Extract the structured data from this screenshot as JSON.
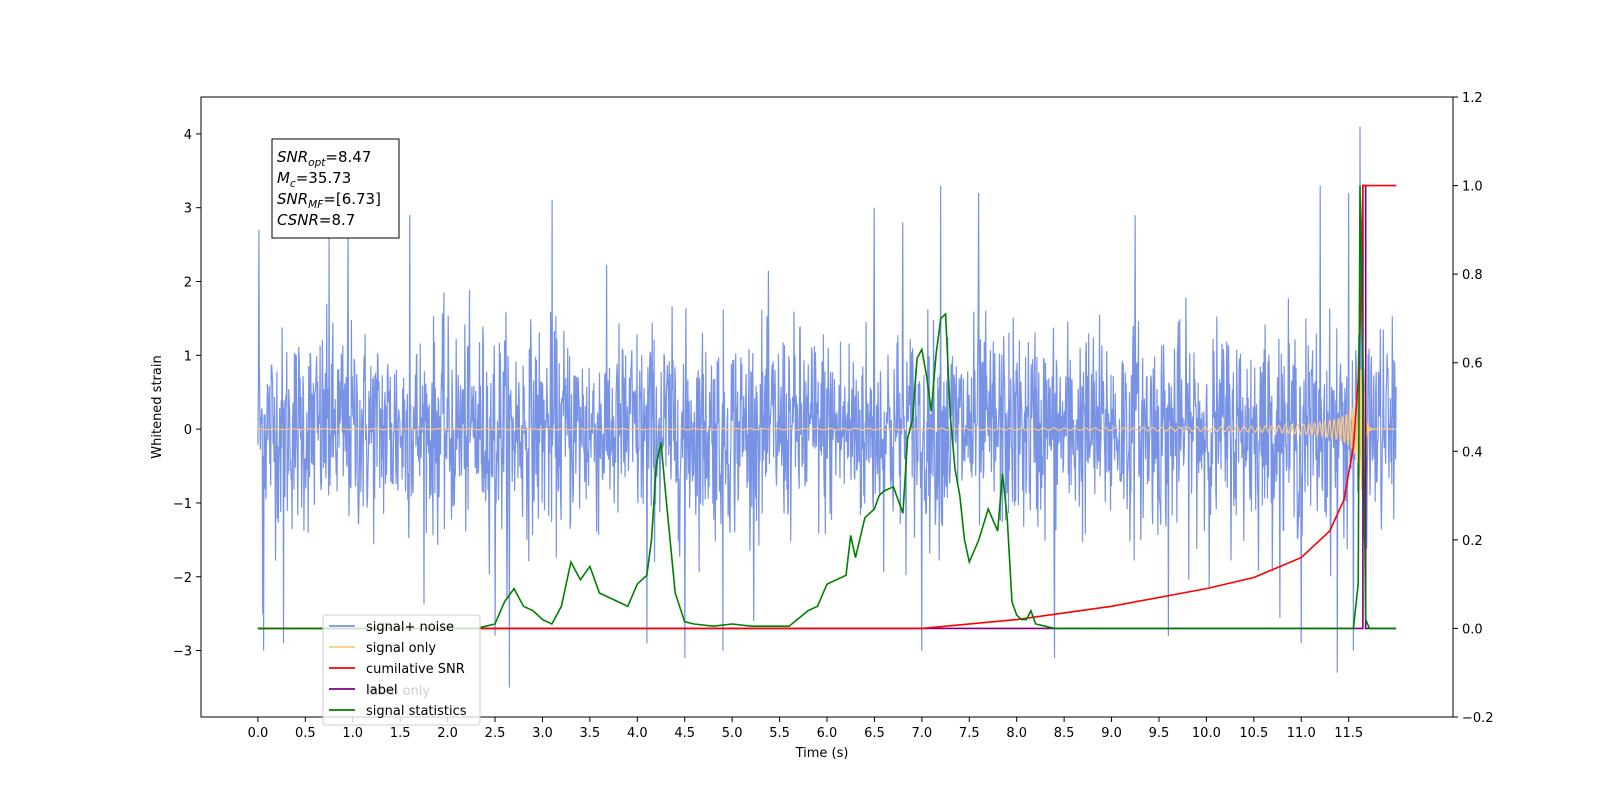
{
  "chart_data": {
    "type": "line",
    "xlabel": "Time (s)",
    "ylabel": "Whitened strain",
    "xlim": [
      -0.6,
      12.6
    ],
    "ylim": [
      -3.9,
      4.5
    ],
    "y2lim": [
      -0.2,
      1.2
    ],
    "x_ticks": [
      0.0,
      0.5,
      1.0,
      1.5,
      2.0,
      2.5,
      3.0,
      3.5,
      4.0,
      4.5,
      5.0,
      5.5,
      6.0,
      6.5,
      7.0,
      7.5,
      8.0,
      8.5,
      9.0,
      9.5,
      10.0,
      10.5,
      11.0,
      11.5
    ],
    "x_tick_labels": [
      "0.0",
      "0.5",
      "1.0",
      "1.5",
      "2.0",
      "2.5",
      "3.0",
      "3.5",
      "4.0",
      "4.5",
      "5.0",
      "5.5",
      "6.0",
      "6.5",
      "7.0",
      "7.5",
      "8.0",
      "8.5",
      "9.0",
      "9.5",
      "10.0",
      "10.5",
      "11.0",
      "11.5"
    ],
    "y_ticks": [
      4,
      3,
      2,
      1,
      0,
      -1,
      -2,
      -3
    ],
    "y_tick_labels": [
      "4",
      "3",
      "2",
      "1",
      "0",
      "−1",
      "−2",
      "−3"
    ],
    "y2_ticks": [
      1.2,
      1.0,
      0.8,
      0.6,
      0.4,
      0.2,
      0.0,
      -0.2
    ],
    "y2_tick_labels": [
      "1.2",
      "1.0",
      "0.8",
      "0.6",
      "0.4",
      "0.2",
      "0.0",
      "−0.2"
    ],
    "annotation": {
      "lines": [
        {
          "base": "SNR",
          "sub": "opt",
          "rest": "=8.47"
        },
        {
          "base": "M",
          "sub": "c",
          "rest": "=35.73"
        },
        {
          "base": "SNR",
          "sub": "MF",
          "rest": "=[6.73]"
        },
        {
          "base": "CSNR",
          "sub": "",
          "rest": "=8.7"
        }
      ]
    },
    "legend": {
      "position": "lower-left",
      "entries": [
        {
          "label": "signal+ noise",
          "color": "#7893e6"
        },
        {
          "label": "signal only",
          "color": "#ffc87c"
        },
        {
          "label": "cumilative SNR",
          "color": "#ff0000"
        },
        {
          "label": "label",
          "color": "#800080"
        },
        {
          "label": "signal statistics",
          "color": "#008000"
        }
      ],
      "hidden_text": "label only"
    },
    "series": [
      {
        "name": "signal+ noise",
        "axis": "left",
        "color": "#7893e6",
        "x_range": [
          0.0,
          12.0
        ],
        "noise_std": 0.68,
        "peaks": [
          {
            "x": 0.01,
            "y": 2.7
          },
          {
            "x": 0.05,
            "y": -2.5
          },
          {
            "x": 0.06,
            "y": -3.0
          },
          {
            "x": 0.27,
            "y": -2.9
          },
          {
            "x": 0.75,
            "y": 2.65
          },
          {
            "x": 0.95,
            "y": 2.7
          },
          {
            "x": 1.6,
            "y": 2.9
          },
          {
            "x": 2.5,
            "y": -2.8
          },
          {
            "x": 2.65,
            "y": -3.5
          },
          {
            "x": 3.1,
            "y": 3.1
          },
          {
            "x": 4.1,
            "y": -2.9
          },
          {
            "x": 4.5,
            "y": -3.1
          },
          {
            "x": 4.9,
            "y": -3.0
          },
          {
            "x": 6.5,
            "y": 3.0
          },
          {
            "x": 6.8,
            "y": 2.8
          },
          {
            "x": 7.0,
            "y": -3.0
          },
          {
            "x": 7.2,
            "y": 3.3
          },
          {
            "x": 7.6,
            "y": 3.2
          },
          {
            "x": 8.4,
            "y": -3.1
          },
          {
            "x": 9.25,
            "y": 2.9
          },
          {
            "x": 9.6,
            "y": -2.8
          },
          {
            "x": 11.0,
            "y": -2.9
          },
          {
            "x": 11.2,
            "y": 3.3
          },
          {
            "x": 11.38,
            "y": -3.3
          },
          {
            "x": 11.5,
            "y": 3.2
          },
          {
            "x": 11.55,
            "y": -3.0
          },
          {
            "x": 11.62,
            "y": 4.1
          }
        ]
      },
      {
        "name": "signal only",
        "axis": "left",
        "color": "#ffc87c",
        "x_range": [
          0.0,
          12.0
        ],
        "merger_time": 11.65,
        "peak_amplitude": 1.05
      },
      {
        "name": "cumilative SNR",
        "axis": "right",
        "color": "#ff0000",
        "x": [
          0.0,
          7.0,
          8.0,
          9.0,
          10.0,
          10.5,
          11.0,
          11.3,
          11.45,
          11.55,
          11.6,
          11.63,
          11.65,
          11.67,
          12.0
        ],
        "values": [
          0.0,
          0.0,
          0.02,
          0.05,
          0.09,
          0.115,
          0.16,
          0.22,
          0.29,
          0.41,
          0.56,
          0.75,
          1.0,
          1.0,
          1.0
        ]
      },
      {
        "name": "label",
        "axis": "right",
        "color": "#800080",
        "x": [
          0.0,
          11.65,
          11.65,
          11.68,
          11.68,
          12.0
        ],
        "values": [
          0.0,
          0.0,
          1.0,
          1.0,
          0.0,
          0.0
        ]
      },
      {
        "name": "signal statistics",
        "axis": "right",
        "color": "#008000",
        "x": [
          0.0,
          2.3,
          2.5,
          2.6,
          2.7,
          2.8,
          2.9,
          3.0,
          3.1,
          3.2,
          3.3,
          3.4,
          3.5,
          3.6,
          3.7,
          3.8,
          3.9,
          4.0,
          4.1,
          4.15,
          4.2,
          4.25,
          4.3,
          4.4,
          4.5,
          4.6,
          4.8,
          5.0,
          5.2,
          5.4,
          5.6,
          5.8,
          5.9,
          6.0,
          6.1,
          6.2,
          6.25,
          6.3,
          6.4,
          6.5,
          6.55,
          6.6,
          6.7,
          6.8,
          6.85,
          6.9,
          6.95,
          7.0,
          7.05,
          7.1,
          7.15,
          7.2,
          7.25,
          7.3,
          7.35,
          7.4,
          7.45,
          7.5,
          7.6,
          7.7,
          7.8,
          7.85,
          7.9,
          7.95,
          8.0,
          8.05,
          8.1,
          8.15,
          8.2,
          8.3,
          8.4,
          8.5,
          8.7,
          8.9,
          9.0,
          11.55,
          11.6,
          11.62,
          11.65,
          11.68,
          11.72,
          12.0
        ],
        "values": [
          0.0,
          0.0,
          0.01,
          0.06,
          0.09,
          0.05,
          0.04,
          0.02,
          0.01,
          0.05,
          0.15,
          0.11,
          0.14,
          0.08,
          0.07,
          0.06,
          0.05,
          0.1,
          0.12,
          0.2,
          0.37,
          0.42,
          0.3,
          0.08,
          0.015,
          0.01,
          0.005,
          0.01,
          0.005,
          0.005,
          0.005,
          0.04,
          0.05,
          0.1,
          0.11,
          0.12,
          0.21,
          0.16,
          0.25,
          0.27,
          0.3,
          0.31,
          0.32,
          0.26,
          0.43,
          0.47,
          0.61,
          0.63,
          0.57,
          0.49,
          0.62,
          0.7,
          0.71,
          0.48,
          0.36,
          0.3,
          0.2,
          0.15,
          0.2,
          0.27,
          0.22,
          0.35,
          0.25,
          0.06,
          0.03,
          0.02,
          0.02,
          0.04,
          0.01,
          0.005,
          0.0,
          0.0,
          0.0,
          0.0,
          0.0,
          0.0,
          0.1,
          1.0,
          0.6,
          0.02,
          0.0,
          0.0
        ]
      }
    ]
  }
}
